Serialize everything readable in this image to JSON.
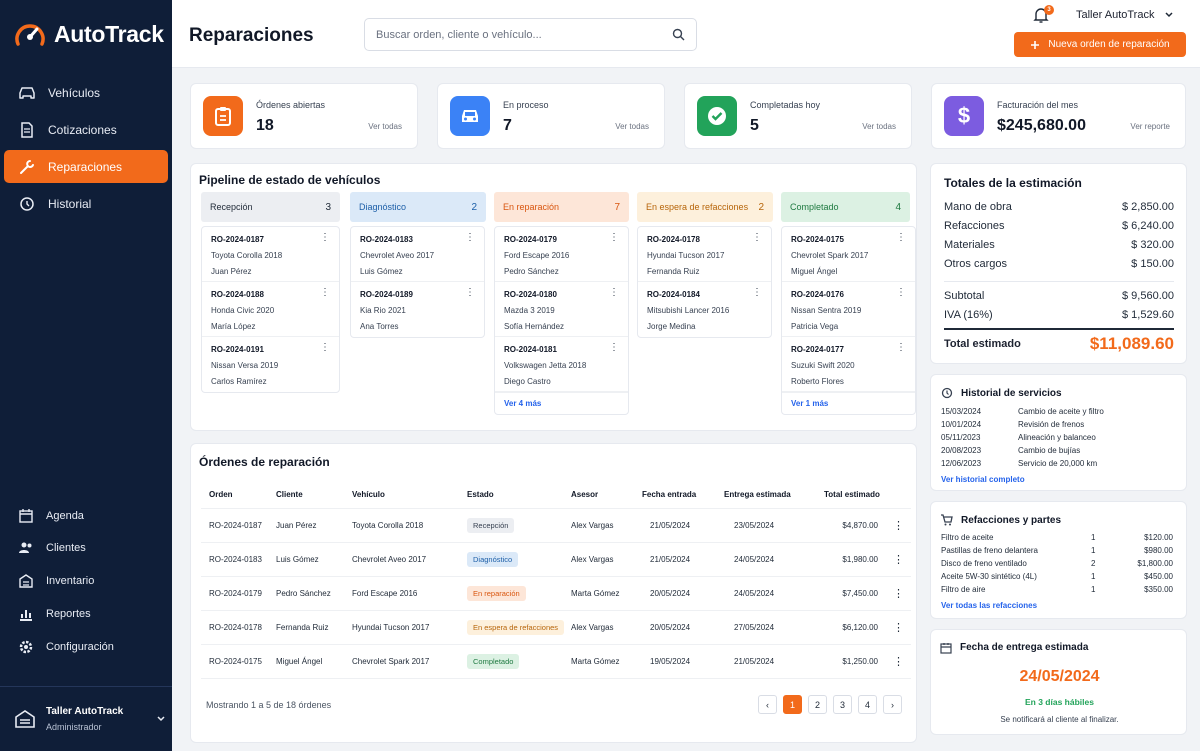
{
  "brand": {
    "name": "AutoTrack"
  },
  "nav": {
    "main": [
      "Vehículos",
      "Cotizaciones",
      "Reparaciones",
      "Historial"
    ],
    "bottom": [
      "Agenda",
      "Clientes",
      "Inventario",
      "Reportes",
      "Configuración"
    ]
  },
  "user": {
    "name": "Taller AutoTrack",
    "role": "Administrador"
  },
  "header": {
    "title": "Reparaciones",
    "search_placeholder": "Buscar orden, cliente o vehículo...",
    "notifications": "3",
    "shop_name": "Taller AutoTrack",
    "new_button": "Nueva orden de reparación"
  },
  "stats": [
    {
      "label": "Órdenes abiertas",
      "value": "18",
      "link": "Ver todas",
      "color": "#f26a1b"
    },
    {
      "label": "En proceso",
      "value": "7",
      "link": "Ver todas",
      "color": "#3b82f6"
    },
    {
      "label": "Completadas hoy",
      "value": "5",
      "link": "Ver todas",
      "color": "#22a35a"
    },
    {
      "label": "Facturación del mes",
      "value": "$245,680.00",
      "link": "Ver reporte",
      "color": "#7c5ce0"
    }
  ],
  "pipeline": {
    "title": "Pipeline de estado de vehículos",
    "stages": [
      {
        "name": "Recepción",
        "count": "3",
        "bg": "#eceef2",
        "fg": "#1f2937",
        "cards": [
          {
            "id": "RO-2024-0187",
            "vehicle": "Toyota Corolla 2018",
            "client": "Juan Pérez"
          },
          {
            "id": "RO-2024-0188",
            "vehicle": "Honda Civic 2020",
            "client": "María López"
          },
          {
            "id": "RO-2024-0191",
            "vehicle": "Nissan Versa 2019",
            "client": "Carlos Ramírez"
          }
        ],
        "more": ""
      },
      {
        "name": "Diagnóstico",
        "count": "2",
        "bg": "#dbe9f8",
        "fg": "#1d5fa8",
        "cards": [
          {
            "id": "RO-2024-0183",
            "vehicle": "Chevrolet Aveo 2017",
            "client": "Luis Gómez"
          },
          {
            "id": "RO-2024-0189",
            "vehicle": "Kia Rio 2021",
            "client": "Ana Torres"
          }
        ],
        "more": ""
      },
      {
        "name": "En reparación",
        "count": "7",
        "bg": "#fde6d8",
        "fg": "#d9560f",
        "cards": [
          {
            "id": "RO-2024-0179",
            "vehicle": "Ford Escape 2016",
            "client": "Pedro Sánchez"
          },
          {
            "id": "RO-2024-0180",
            "vehicle": "Mazda 3 2019",
            "client": "Sofía Hernández"
          },
          {
            "id": "RO-2024-0181",
            "vehicle": "Volkswagen Jetta 2018",
            "client": "Diego Castro"
          }
        ],
        "more": "Ver 4 más"
      },
      {
        "name": "En espera de refacciones",
        "count": "2",
        "bg": "#fdf0dc",
        "fg": "#b7650a",
        "cards": [
          {
            "id": "RO-2024-0178",
            "vehicle": "Hyundai Tucson 2017",
            "client": "Fernanda Ruiz"
          },
          {
            "id": "RO-2024-0184",
            "vehicle": "Mitsubishi Lancer 2016",
            "client": "Jorge Medina"
          }
        ],
        "more": ""
      },
      {
        "name": "Completado",
        "count": "4",
        "bg": "#dcf1e3",
        "fg": "#1f7a41",
        "cards": [
          {
            "id": "RO-2024-0175",
            "vehicle": "Chevrolet Spark 2017",
            "client": "Miguel Ángel"
          },
          {
            "id": "RO-2024-0176",
            "vehicle": "Nissan Sentra 2019",
            "client": "Patricia Vega"
          },
          {
            "id": "RO-2024-0177",
            "vehicle": "Suzuki Swift 2020",
            "client": "Roberto Flores"
          }
        ],
        "more": "Ver 1 más"
      }
    ]
  },
  "orders": {
    "title": "Órdenes de reparación",
    "columns": [
      "Orden",
      "Cliente",
      "Vehículo",
      "Estado",
      "Asesor",
      "Fecha entrada",
      "Entrega estimada",
      "Total estimado"
    ],
    "rows": [
      {
        "id": "RO-2024-0187",
        "client": "Juan Pérez",
        "vehicle": "Toyota Corolla 2018",
        "status": "Recepción",
        "sbg": "#eceef2",
        "sfg": "#374151",
        "advisor": "Alex Vargas",
        "in": "21/05/2024",
        "out": "23/05/2024",
        "total": "$4,870.00"
      },
      {
        "id": "RO-2024-0183",
        "client": "Luis Gómez",
        "vehicle": "Chevrolet Aveo 2017",
        "status": "Diagnóstico",
        "sbg": "#dbe9f8",
        "sfg": "#1d5fa8",
        "advisor": "Alex Vargas",
        "in": "21/05/2024",
        "out": "24/05/2024",
        "total": "$1,980.00"
      },
      {
        "id": "RO-2024-0179",
        "client": "Pedro Sánchez",
        "vehicle": "Ford Escape 2016",
        "status": "En reparación",
        "sbg": "#fde6d8",
        "sfg": "#d9560f",
        "advisor": "Marta Gómez",
        "in": "20/05/2024",
        "out": "24/05/2024",
        "total": "$7,450.00"
      },
      {
        "id": "RO-2024-0178",
        "client": "Fernanda Ruiz",
        "vehicle": "Hyundai Tucson 2017",
        "status": "En espera de refacciones",
        "sbg": "#fdf0dc",
        "sfg": "#b7650a",
        "advisor": "Alex Vargas",
        "in": "20/05/2024",
        "out": "27/05/2024",
        "total": "$6,120.00"
      },
      {
        "id": "RO-2024-0175",
        "client": "Miguel Ángel",
        "vehicle": "Chevrolet Spark 2017",
        "status": "Completado",
        "sbg": "#dcf1e3",
        "sfg": "#1f7a41",
        "advisor": "Marta Gómez",
        "in": "19/05/2024",
        "out": "21/05/2024",
        "total": "$1,250.00"
      }
    ],
    "footer": "Mostrando 1 a 5 de 18 órdenes",
    "pages": [
      "1",
      "2",
      "3",
      "4"
    ],
    "prev": "‹",
    "next": "›"
  },
  "totals": {
    "title": "Totales de la estimación",
    "lines": [
      {
        "label": "Mano de obra",
        "value": "$ 2,850.00"
      },
      {
        "label": "Refacciones",
        "value": "$ 6,240.00"
      },
      {
        "label": "Materiales",
        "value": "$ 320.00"
      },
      {
        "label": "Otros cargos",
        "value": "$ 150.00"
      }
    ],
    "subtotal_label": "Subtotal",
    "subtotal": "$ 9,560.00",
    "iva_label": "IVA (16%)",
    "iva": "$ 1,529.60",
    "total_label": "Total estimado",
    "total": "$11,089.60"
  },
  "history": {
    "title": "Historial de servicios",
    "items": [
      {
        "date": "15/03/2024",
        "desc": "Cambio de aceite y filtro"
      },
      {
        "date": "10/01/2024",
        "desc": "Revisión de frenos"
      },
      {
        "date": "05/11/2023",
        "desc": "Alineación y balanceo"
      },
      {
        "date": "20/08/2023",
        "desc": "Cambio de bujías"
      },
      {
        "date": "12/06/2023",
        "desc": "Servicio de 20,000 km"
      }
    ],
    "link": "Ver historial completo"
  },
  "parts": {
    "title": "Refacciones y partes",
    "items": [
      {
        "name": "Filtro de aceite",
        "qty": "1",
        "price": "$120.00"
      },
      {
        "name": "Pastillas de freno delantera",
        "qty": "1",
        "price": "$980.00"
      },
      {
        "name": "Disco de freno ventilado",
        "qty": "2",
        "price": "$1,800.00"
      },
      {
        "name": "Aceite 5W-30 sintético (4L)",
        "qty": "1",
        "price": "$450.00"
      },
      {
        "name": "Filtro de aire",
        "qty": "1",
        "price": "$350.00"
      }
    ],
    "link": "Ver todas las refacciones"
  },
  "delivery": {
    "title": "Fecha de entrega estimada",
    "date": "24/05/2024",
    "days": "En 3 días hábiles",
    "note": "Se notificará al cliente al finalizar."
  }
}
